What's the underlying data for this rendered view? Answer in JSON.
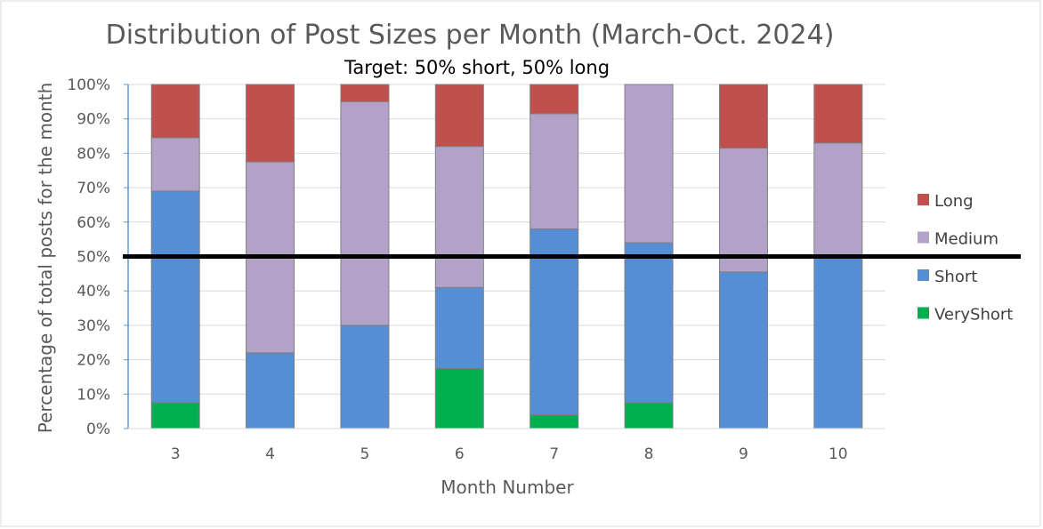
{
  "chart_data": {
    "type": "bar",
    "stacked": true,
    "title": "Distribution of Post Sizes per Month (March-Oct. 2024)",
    "subtitle": "Target: 50% short, 50% long",
    "xlabel": "Month Number",
    "ylabel": "Percentage of total posts for the month",
    "categories": [
      "3",
      "4",
      "5",
      "6",
      "7",
      "8",
      "9",
      "10"
    ],
    "ylim": [
      0,
      100
    ],
    "yticks": [
      "0%",
      "10%",
      "20%",
      "30%",
      "40%",
      "50%",
      "60%",
      "70%",
      "80%",
      "90%",
      "100%"
    ],
    "series": [
      {
        "name": "VeryShort",
        "color": "#00b050",
        "values": [
          7.5,
          0,
          0,
          17.5,
          4,
          7.5,
          0,
          0
        ]
      },
      {
        "name": "Short",
        "color": "#558ed5",
        "values": [
          61.5,
          22,
          30,
          23.5,
          54,
          46.5,
          45.5,
          49.5
        ]
      },
      {
        "name": "Medium",
        "color": "#b3a2c7",
        "values": [
          15.5,
          55.5,
          65,
          41,
          33.5,
          46,
          36,
          33.5
        ]
      },
      {
        "name": "Long",
        "color": "#c0504d",
        "values": [
          15.5,
          22.5,
          5,
          18,
          8.5,
          0,
          18.5,
          17
        ]
      }
    ],
    "target_line": {
      "value": 50,
      "color": "#000000"
    },
    "legend": {
      "position": "right",
      "order": [
        "Long",
        "Medium",
        "Short",
        "VeryShort"
      ]
    },
    "grid": true
  }
}
